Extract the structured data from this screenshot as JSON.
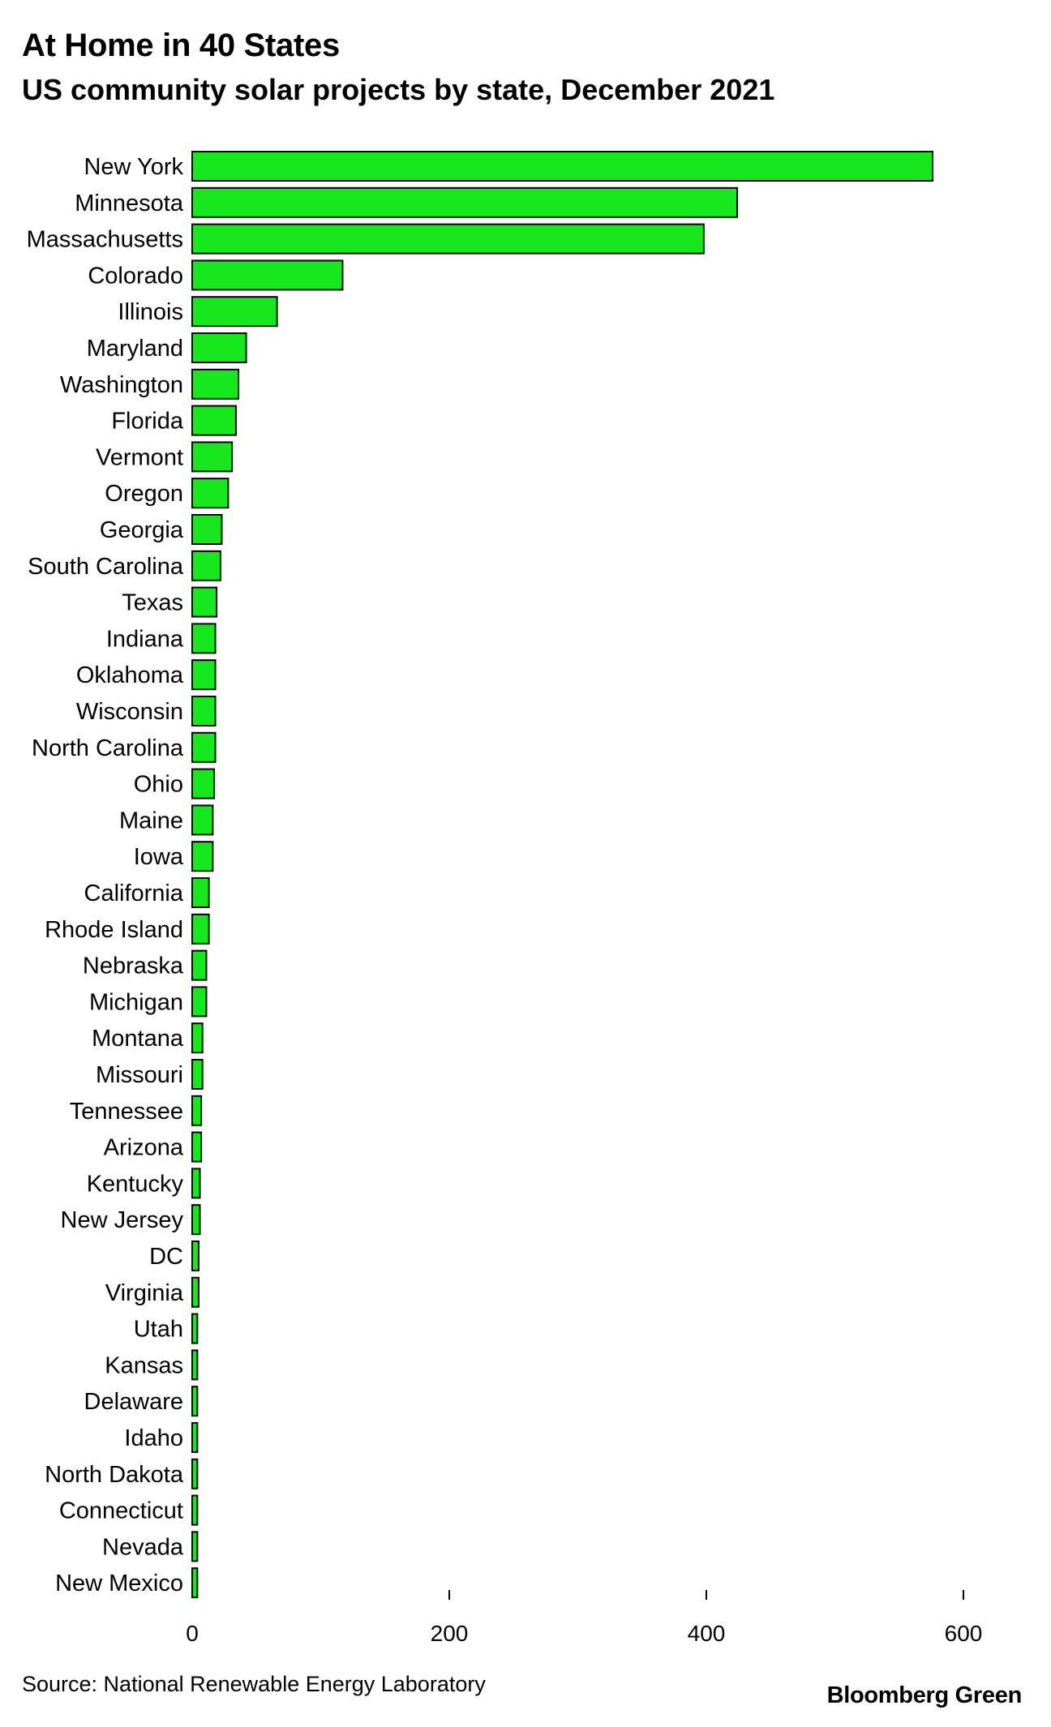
{
  "chart_data": {
    "type": "bar",
    "orientation": "horizontal",
    "title": "At Home in 40 States",
    "subtitle": "US community solar projects by state, December 2021",
    "categories": [
      "New York",
      "Minnesota",
      "Massachusetts",
      "Colorado",
      "Illinois",
      "Maryland",
      "Washington",
      "Florida",
      "Vermont",
      "Oregon",
      "Georgia",
      "South Carolina",
      "Texas",
      "Indiana",
      "Oklahoma",
      "Wisconsin",
      "North Carolina",
      "Ohio",
      "Maine",
      "Iowa",
      "California",
      "Rhode Island",
      "Nebraska",
      "Michigan",
      "Montana",
      "Missouri",
      "Tennessee",
      "Arizona",
      "Kentucky",
      "New Jersey",
      "DC",
      "Virginia",
      "Utah",
      "Kansas",
      "Delaware",
      "Idaho",
      "North Dakota",
      "Connecticut",
      "Nevada",
      "New Mexico"
    ],
    "values": [
      576,
      424,
      398,
      117,
      66,
      42,
      36,
      34,
      31,
      28,
      23,
      22,
      19,
      18,
      18,
      18,
      18,
      17,
      16,
      16,
      13,
      13,
      11,
      11,
      8,
      8,
      7,
      7,
      6,
      6,
      5,
      5,
      4,
      4,
      4,
      4,
      4,
      4,
      4,
      4
    ],
    "xlim": [
      0,
      640
    ],
    "xticks": [
      0,
      200,
      400,
      600
    ],
    "bar_color": "#16e71e",
    "grid": false,
    "legend": "none"
  },
  "footer": {
    "source": "Source: National Renewable Energy Laboratory",
    "brand": "Bloomberg Green"
  }
}
